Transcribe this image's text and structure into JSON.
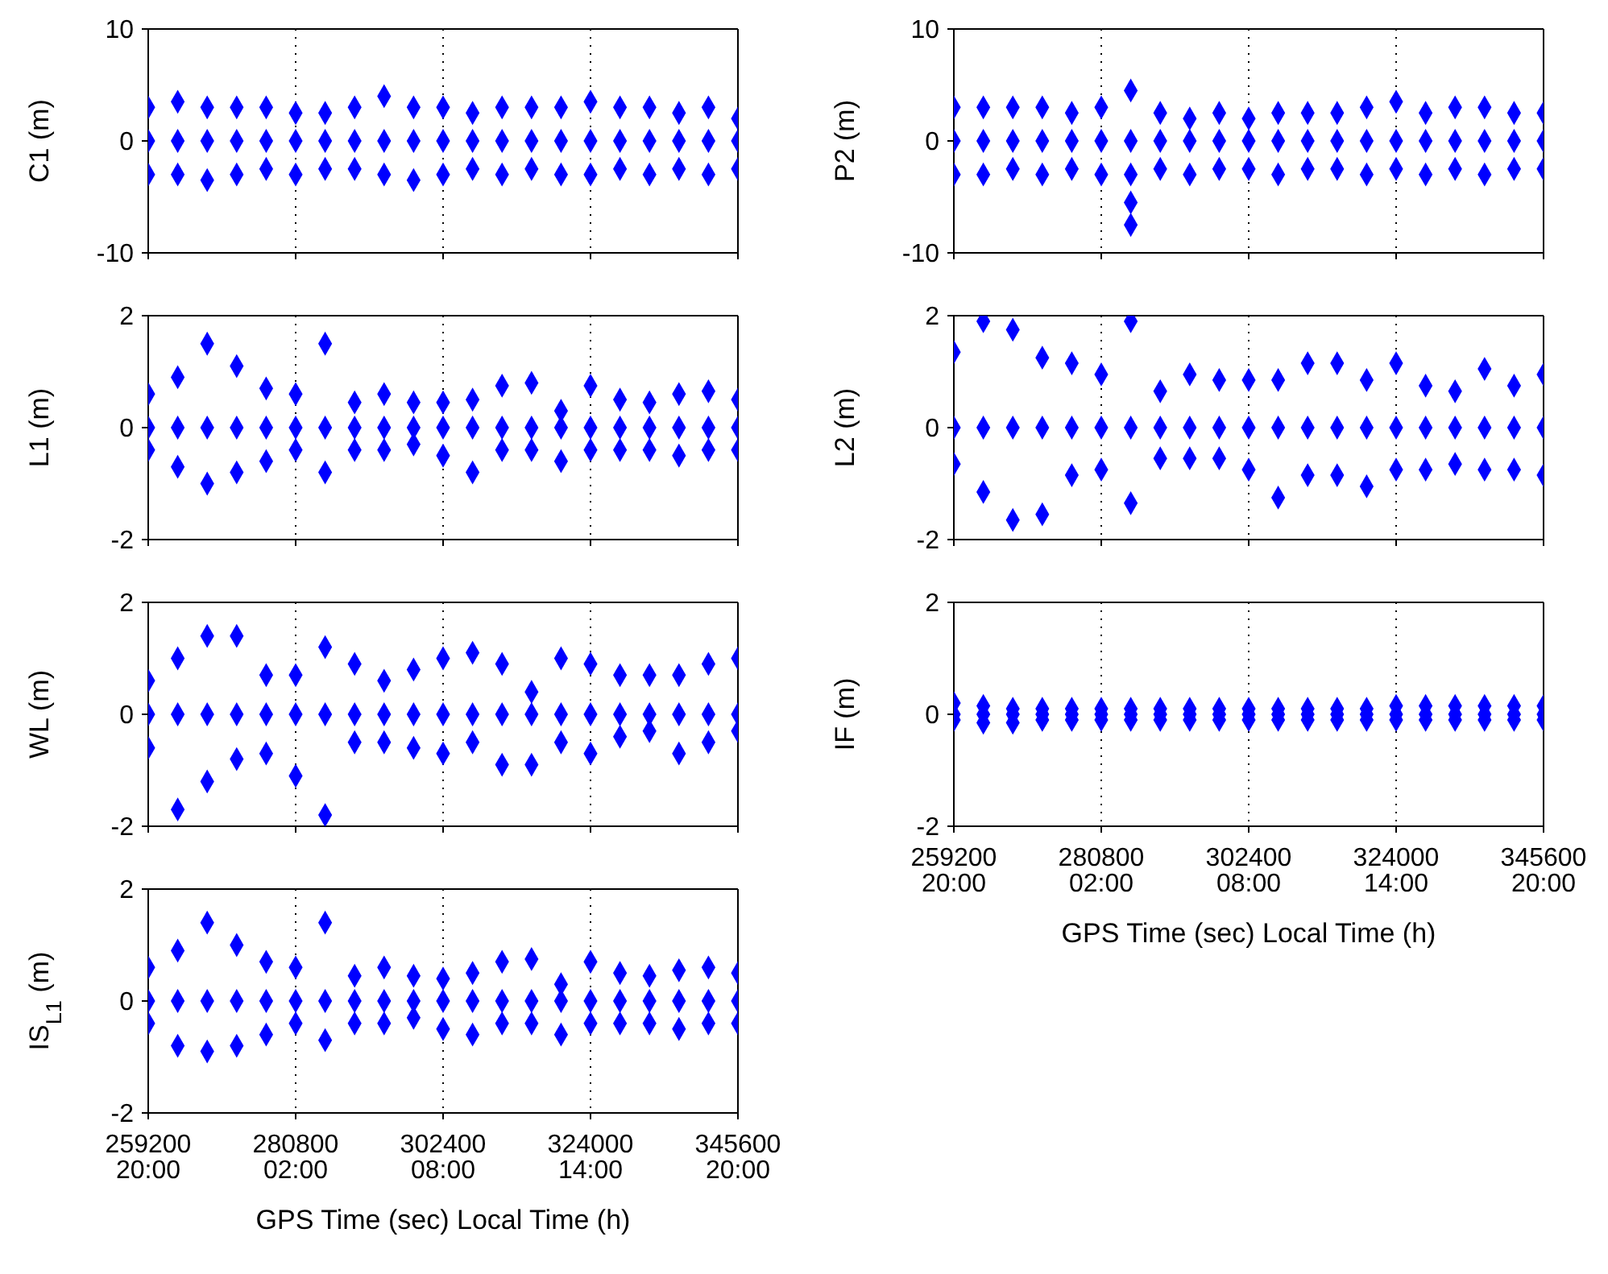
{
  "chart_data": [
    {
      "type": "scatter",
      "ylabel": "C1 (m)",
      "xlim": [
        259200,
        345600
      ],
      "xticks": [
        259200,
        280800,
        302400,
        324000,
        345600
      ],
      "ylim": [
        -10,
        10
      ],
      "yticks": [
        -10,
        0,
        10
      ],
      "grid": "x",
      "marker": "diamond",
      "tick_labels": "y",
      "series": [
        {
          "color": "#0000ff",
          "x": [
            259200,
            263520,
            267840,
            272160,
            276480,
            280800,
            285120,
            289440,
            293760,
            298080,
            302400,
            306720,
            311040,
            315360,
            319680,
            324000,
            328320,
            332640,
            336960,
            341280,
            345600,
            259200,
            263520,
            267840,
            272160,
            276480,
            280800,
            285120,
            289440,
            293760,
            298080,
            302400,
            306720,
            311040,
            315360,
            319680,
            324000,
            328320,
            332640,
            336960,
            341280,
            345600,
            259200,
            263520,
            267840,
            272160,
            276480,
            280800,
            285120,
            289440,
            293760,
            298080,
            302400,
            306720,
            311040,
            315360,
            319680,
            324000,
            328320,
            332640,
            336960,
            341280,
            345600
          ],
          "values": [
            3,
            3.5,
            3,
            3,
            3,
            2.5,
            2.5,
            3,
            4,
            3,
            3,
            2.5,
            3,
            3,
            3,
            3.5,
            3,
            3,
            2.5,
            3,
            2,
            0,
            0,
            0,
            0,
            0,
            0,
            0,
            0,
            0,
            0,
            0,
            0,
            0,
            0,
            0,
            0,
            0,
            0,
            0,
            0,
            0,
            -3,
            -3,
            -3.5,
            -3,
            -2.5,
            -3,
            -2.5,
            -2.5,
            -3,
            -3.5,
            -3,
            -2.5,
            -3,
            -2.5,
            -3,
            -3,
            -2.5,
            -3,
            -2.5,
            -3,
            -2.5
          ]
        }
      ]
    },
    {
      "type": "scatter",
      "ylabel": "P2 (m)",
      "xlim": [
        259200,
        345600
      ],
      "xticks": [
        259200,
        280800,
        302400,
        324000,
        345600
      ],
      "ylim": [
        -10,
        10
      ],
      "yticks": [
        -10,
        0,
        10
      ],
      "grid": "x",
      "marker": "diamond",
      "tick_labels": "y",
      "series": [
        {
          "color": "#0000ff",
          "x": [
            259200,
            263520,
            267840,
            272160,
            276480,
            280800,
            285120,
            289440,
            293760,
            298080,
            302400,
            306720,
            311040,
            315360,
            319680,
            324000,
            328320,
            332640,
            336960,
            341280,
            345600,
            259200,
            263520,
            267840,
            272160,
            276480,
            280800,
            285120,
            289440,
            293760,
            298080,
            302400,
            306720,
            311040,
            315360,
            319680,
            324000,
            328320,
            332640,
            336960,
            341280,
            345600,
            259200,
            263520,
            267840,
            272160,
            276480,
            280800,
            285120,
            289440,
            293760,
            298080,
            302400,
            306720,
            311040,
            315360,
            319680,
            324000,
            328320,
            332640,
            336960,
            341280,
            345600,
            285120,
            285120
          ],
          "values": [
            3,
            3,
            3,
            3,
            2.5,
            3,
            4.5,
            2.5,
            2,
            2.5,
            2,
            2.5,
            2.5,
            2.5,
            3,
            3.5,
            2.5,
            3,
            3,
            2.5,
            2.5,
            0,
            0,
            0,
            0,
            0,
            0,
            0,
            0,
            0,
            0,
            0,
            0,
            0,
            0,
            0,
            0,
            0,
            0,
            0,
            0,
            0,
            -3,
            -3,
            -2.5,
            -3,
            -2.5,
            -3,
            -3,
            -2.5,
            -3,
            -2.5,
            -2.5,
            -3,
            -2.5,
            -2.5,
            -3,
            -2.5,
            -3,
            -2.5,
            -3,
            -2.5,
            -2.5,
            -5.5,
            -7.5
          ]
        }
      ]
    },
    {
      "type": "scatter",
      "ylabel": "L1 (m)",
      "xlim": [
        259200,
        345600
      ],
      "xticks": [
        259200,
        280800,
        302400,
        324000,
        345600
      ],
      "ylim": [
        -2,
        2
      ],
      "yticks": [
        -2,
        0,
        2
      ],
      "grid": "x",
      "marker": "diamond",
      "tick_labels": "y",
      "series": [
        {
          "color": "#0000ff",
          "x": [
            259200,
            263520,
            267840,
            272160,
            276480,
            280800,
            285120,
            289440,
            293760,
            298080,
            302400,
            306720,
            311040,
            315360,
            319680,
            324000,
            328320,
            332640,
            336960,
            341280,
            345600,
            259200,
            263520,
            267840,
            272160,
            276480,
            280800,
            285120,
            289440,
            293760,
            298080,
            302400,
            306720,
            311040,
            315360,
            319680,
            324000,
            328320,
            332640,
            336960,
            341280,
            345600,
            259200,
            263520,
            267840,
            272160,
            276480,
            280800,
            285120,
            289440,
            293760,
            298080,
            302400,
            306720,
            311040,
            315360,
            319680,
            324000,
            328320,
            332640,
            336960,
            341280,
            345600
          ],
          "values": [
            0.6,
            0.9,
            1.5,
            1.1,
            0.7,
            0.6,
            1.5,
            0.45,
            0.6,
            0.45,
            0.45,
            0.5,
            0.75,
            0.8,
            0.3,
            0.75,
            0.5,
            0.45,
            0.6,
            0.65,
            0.5,
            0,
            0,
            0,
            0,
            0,
            0,
            0,
            0,
            0,
            0,
            0,
            0,
            0,
            0,
            0,
            0,
            0,
            0,
            0,
            0,
            0,
            -0.4,
            -0.7,
            -1,
            -0.8,
            -0.6,
            -0.4,
            -0.8,
            -0.4,
            -0.4,
            -0.3,
            -0.5,
            -0.8,
            -0.4,
            -0.4,
            -0.6,
            -0.4,
            -0.4,
            -0.4,
            -0.5,
            -0.4,
            -0.4
          ]
        }
      ]
    },
    {
      "type": "scatter",
      "ylabel": "L2 (m)",
      "xlim": [
        259200,
        345600
      ],
      "xticks": [
        259200,
        280800,
        302400,
        324000,
        345600
      ],
      "ylim": [
        -2,
        2
      ],
      "yticks": [
        -2,
        0,
        2
      ],
      "grid": "x",
      "marker": "diamond",
      "tick_labels": "y",
      "series": [
        {
          "color": "#0000ff",
          "x": [
            259200,
            263520,
            267840,
            272160,
            276480,
            280800,
            285120,
            289440,
            293760,
            298080,
            302400,
            306720,
            311040,
            315360,
            319680,
            324000,
            328320,
            332640,
            336960,
            341280,
            345600,
            259200,
            263520,
            267840,
            272160,
            276480,
            280800,
            285120,
            289440,
            293760,
            298080,
            302400,
            306720,
            311040,
            315360,
            319680,
            324000,
            328320,
            332640,
            336960,
            341280,
            345600,
            259200,
            263520,
            267840,
            272160,
            276480,
            280800,
            285120,
            289440,
            293760,
            298080,
            302400,
            306720,
            311040,
            315360,
            319680,
            324000,
            328320,
            332640,
            336960,
            341280,
            345600
          ],
          "values": [
            1.35,
            1.9,
            1.75,
            1.25,
            1.15,
            0.95,
            1.9,
            0.65,
            0.95,
            0.85,
            0.85,
            0.85,
            1.15,
            1.15,
            0.85,
            1.15,
            0.75,
            0.65,
            1.05,
            0.75,
            0.95,
            0,
            0,
            0,
            0,
            0,
            0,
            0,
            0,
            0,
            0,
            0,
            0,
            0,
            0,
            0,
            0,
            0,
            0,
            0,
            0,
            0,
            -0.65,
            -1.15,
            -1.65,
            -1.55,
            -0.85,
            -0.75,
            -1.35,
            -0.55,
            -0.55,
            -0.55,
            -0.75,
            -1.25,
            -0.85,
            -0.85,
            -1.05,
            -0.75,
            -0.75,
            -0.65,
            -0.75,
            -0.75,
            -0.85
          ]
        }
      ]
    },
    {
      "type": "scatter",
      "ylabel": "WL (m)",
      "xlim": [
        259200,
        345600
      ],
      "xticks": [
        259200,
        280800,
        302400,
        324000,
        345600
      ],
      "ylim": [
        -2,
        2
      ],
      "yticks": [
        -2,
        0,
        2
      ],
      "grid": "x",
      "marker": "diamond",
      "tick_labels": "y",
      "series": [
        {
          "color": "#0000ff",
          "x": [
            259200,
            263520,
            267840,
            272160,
            276480,
            280800,
            285120,
            289440,
            293760,
            298080,
            302400,
            306720,
            311040,
            315360,
            319680,
            324000,
            328320,
            332640,
            336960,
            341280,
            345600,
            259200,
            263520,
            267840,
            272160,
            276480,
            280800,
            285120,
            289440,
            293760,
            298080,
            302400,
            306720,
            311040,
            315360,
            319680,
            324000,
            328320,
            332640,
            336960,
            341280,
            345600,
            259200,
            263520,
            267840,
            272160,
            276480,
            280800,
            285120,
            289440,
            293760,
            298080,
            302400,
            306720,
            311040,
            315360,
            319680,
            324000,
            328320,
            332640,
            336960,
            341280,
            345600
          ],
          "values": [
            0.6,
            1,
            1.4,
            1.4,
            0.7,
            0.7,
            1.2,
            0.9,
            0.6,
            0.8,
            1,
            1.1,
            0.9,
            0.4,
            1,
            0.9,
            0.7,
            0.7,
            0.7,
            0.9,
            1,
            0,
            0,
            0,
            0,
            0,
            0,
            0,
            0,
            0,
            0,
            0,
            0,
            0,
            0,
            0,
            0,
            0,
            0,
            0,
            0,
            0,
            -0.6,
            -1.7,
            -1.2,
            -0.8,
            -0.7,
            -1.1,
            -1.8,
            -0.5,
            -0.5,
            -0.6,
            -0.7,
            -0.5,
            -0.9,
            -0.9,
            -0.5,
            -0.7,
            -0.4,
            -0.3,
            -0.7,
            -0.5,
            -0.3
          ]
        }
      ]
    },
    {
      "type": "scatter",
      "ylabel": "IF (m)",
      "xlabel": "GPS Time (sec) Local Time (h)",
      "xlim": [
        259200,
        345600
      ],
      "xticks": [
        259200,
        280800,
        302400,
        324000,
        345600
      ],
      "annotations": [
        "20:00",
        "02:00",
        "08:00",
        "14:00",
        "20:00"
      ],
      "ylim": [
        -2,
        2
      ],
      "yticks": [
        -2,
        0,
        2
      ],
      "grid": "x",
      "marker": "diamond",
      "series": [
        {
          "color": "#0000ff",
          "x": [
            259200,
            263520,
            267840,
            272160,
            276480,
            280800,
            285120,
            289440,
            293760,
            298080,
            302400,
            306720,
            311040,
            315360,
            319680,
            324000,
            328320,
            332640,
            336960,
            341280,
            345600,
            259200,
            263520,
            267840,
            272160,
            276480,
            280800,
            285120,
            289440,
            293760,
            298080,
            302400,
            306720,
            311040,
            315360,
            319680,
            324000,
            328320,
            332640,
            336960,
            341280,
            345600,
            259200,
            263520,
            267840,
            272160,
            276480,
            280800,
            285120,
            289440,
            293760,
            298080,
            302400,
            306720,
            311040,
            315360,
            319680,
            324000,
            328320,
            332640,
            336960,
            341280,
            345600
          ],
          "values": [
            0.2,
            0.15,
            0.1,
            0.1,
            0.1,
            0.1,
            0.1,
            0.1,
            0.1,
            0.1,
            0.1,
            0.1,
            0.1,
            0.1,
            0.1,
            0.15,
            0.15,
            0.15,
            0.15,
            0.15,
            0.15,
            0,
            0,
            0,
            0,
            0,
            0,
            0,
            0,
            0,
            0,
            0,
            0,
            0,
            0,
            0,
            0,
            0,
            0,
            0,
            0,
            0,
            -0.1,
            -0.15,
            -0.15,
            -0.1,
            -0.1,
            -0.1,
            -0.1,
            -0.1,
            -0.1,
            -0.1,
            -0.1,
            -0.1,
            -0.1,
            -0.1,
            -0.1,
            -0.1,
            -0.1,
            -0.1,
            -0.1,
            -0.1,
            -0.1
          ]
        }
      ]
    },
    {
      "type": "scatter",
      "ylabel": "IS$_{L1}$ (m)",
      "xlabel": "GPS Time (sec) Local Time (h)",
      "xlim": [
        259200,
        345600
      ],
      "xticks": [
        259200,
        280800,
        302400,
        324000,
        345600
      ],
      "annotations": [
        "20:00",
        "02:00",
        "08:00",
        "14:00",
        "20:00"
      ],
      "ylim": [
        -2,
        2
      ],
      "yticks": [
        -2,
        0,
        2
      ],
      "grid": "x",
      "marker": "diamond",
      "series": [
        {
          "color": "#0000ff",
          "x": [
            259200,
            263520,
            267840,
            272160,
            276480,
            280800,
            285120,
            289440,
            293760,
            298080,
            302400,
            306720,
            311040,
            315360,
            319680,
            324000,
            328320,
            332640,
            336960,
            341280,
            345600,
            259200,
            263520,
            267840,
            272160,
            276480,
            280800,
            285120,
            289440,
            293760,
            298080,
            302400,
            306720,
            311040,
            315360,
            319680,
            324000,
            328320,
            332640,
            336960,
            341280,
            345600,
            259200,
            263520,
            267840,
            272160,
            276480,
            280800,
            285120,
            289440,
            293760,
            298080,
            302400,
            306720,
            311040,
            315360,
            319680,
            324000,
            328320,
            332640,
            336960,
            341280,
            345600
          ],
          "values": [
            0.6,
            0.9,
            1.4,
            1,
            0.7,
            0.6,
            1.4,
            0.45,
            0.6,
            0.45,
            0.4,
            0.5,
            0.7,
            0.75,
            0.3,
            0.7,
            0.5,
            0.45,
            0.55,
            0.6,
            0.5,
            0,
            0,
            0,
            0,
            0,
            0,
            0,
            0,
            0,
            0,
            0,
            0,
            0,
            0,
            0,
            0,
            0,
            0,
            0,
            0,
            0,
            -0.4,
            -0.8,
            -0.9,
            -0.8,
            -0.6,
            -0.4,
            -0.7,
            -0.4,
            -0.4,
            -0.3,
            -0.5,
            -0.6,
            -0.4,
            -0.4,
            -0.6,
            -0.4,
            -0.4,
            -0.4,
            -0.5,
            -0.4,
            -0.4
          ]
        }
      ]
    }
  ]
}
